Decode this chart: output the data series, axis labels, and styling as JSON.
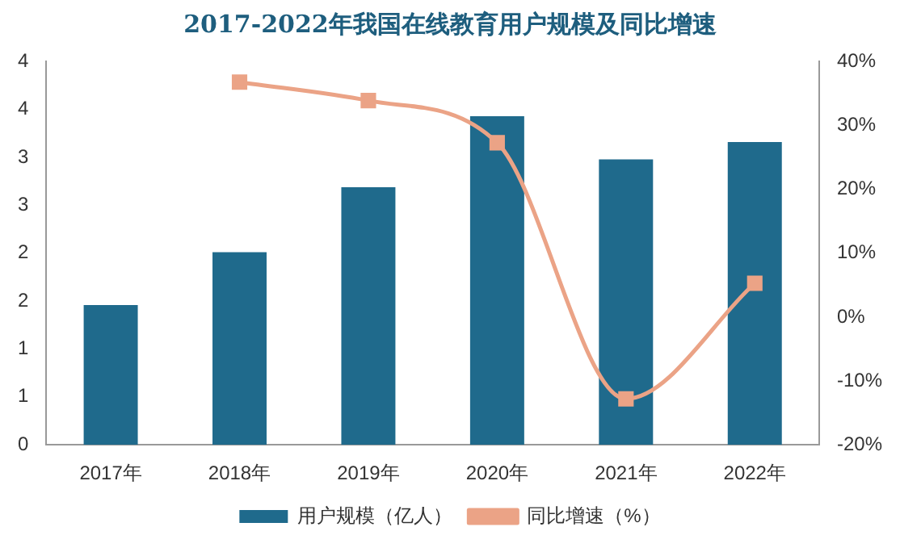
{
  "chart_data": {
    "type": "bar",
    "title": "2017-2022年我国在线教育用户规模及同比增速",
    "categories": [
      "2017年",
      "2018年",
      "2019年",
      "2020年",
      "2021年",
      "2022年"
    ],
    "series": [
      {
        "name": "用户规模（亿人）",
        "color": "#1f6a8c",
        "values": [
          1.46,
          2.01,
          2.69,
          3.43,
          2.98,
          3.16
        ]
      },
      {
        "name": "同比增速（%）",
        "type": "line",
        "axis": "y2",
        "color": "#eba386",
        "marker": "square",
        "values": [
          null,
          36.8,
          33.9,
          27.3,
          -12.8,
          5.3
        ]
      }
    ],
    "ylim": [
      0,
      4
    ],
    "yticks": [
      0,
      {
        "value": 0.5,
        "label": "1"
      },
      1,
      {
        "value": 1.5,
        "label": "2"
      },
      2,
      {
        "value": 2.5,
        "label": "3"
      },
      3,
      {
        "value": 3.5,
        "label": "4"
      },
      4
    ],
    "y2lim": [
      -20,
      40
    ],
    "y2ticks": [
      {
        "value": -20,
        "label": "-20%"
      },
      {
        "value": -10,
        "label": "-10%"
      },
      {
        "value": 0,
        "label": "0%"
      },
      {
        "value": 10,
        "label": "10%"
      },
      {
        "value": 20,
        "label": "20%"
      },
      {
        "value": 30,
        "label": "30%"
      },
      {
        "value": 40,
        "label": "40%"
      }
    ],
    "grid": false,
    "legend": "bottom"
  }
}
